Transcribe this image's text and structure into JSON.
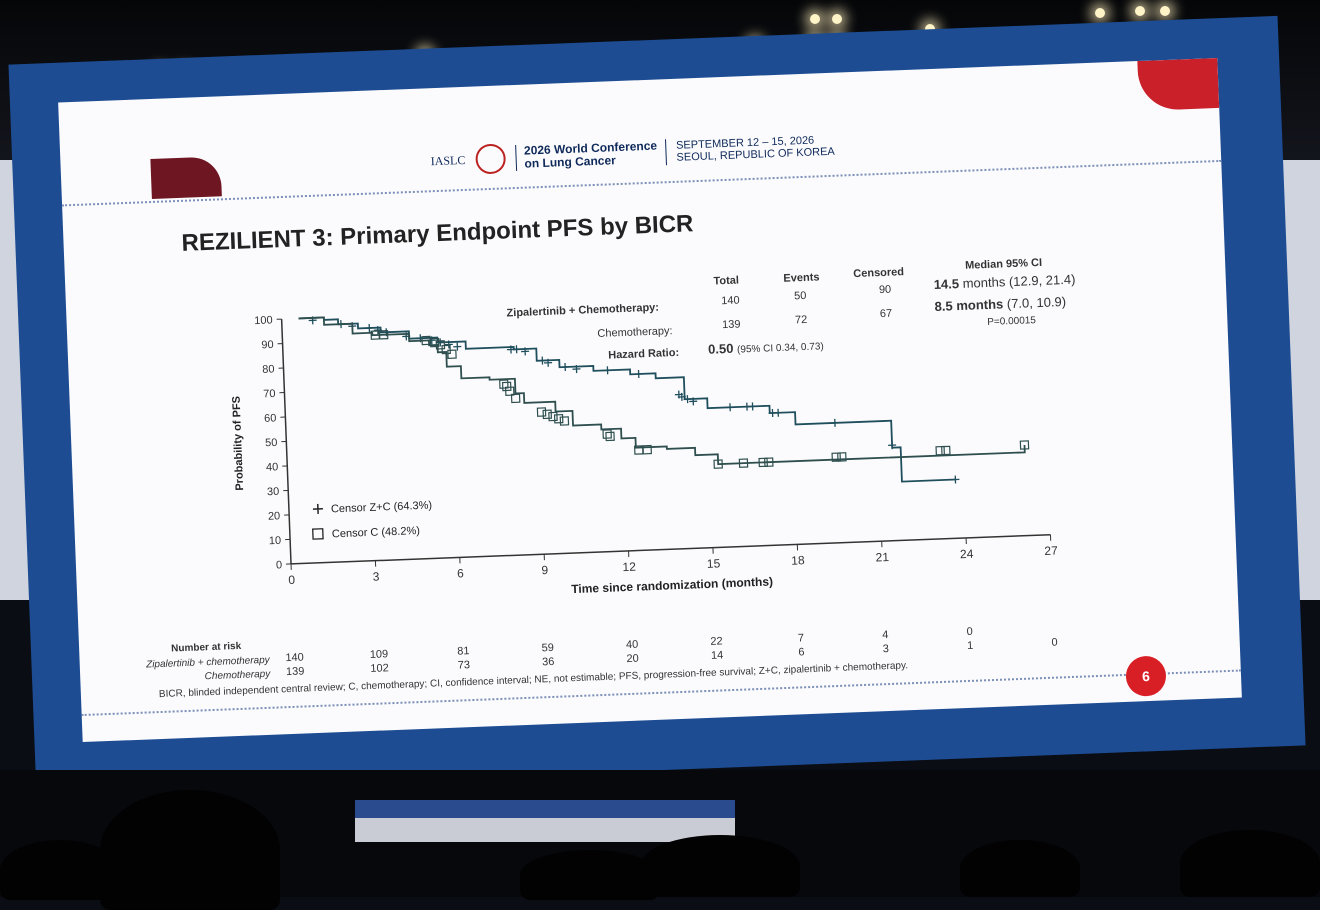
{
  "header": {
    "org": "IASLC",
    "conference_line1": "2026 World Conference",
    "conference_line2": "on Lung Cancer",
    "date_line1": "SEPTEMBER 12 – 15, 2026",
    "date_line2": "SEOUL, REPUBLIC OF KOREA"
  },
  "slide_title": "REZILIENT 3: Primary Endpoint PFS by BICR",
  "stats": {
    "col_total": "Total",
    "col_events": "Events",
    "col_censored": "Censored",
    "col_median": "Median 95% CI",
    "row1_label": "Zipalertinib + Chemotherapy:",
    "row1_total": "140",
    "row1_events": "50",
    "row1_censored": "90",
    "row1_median": "14.5",
    "row1_median_unit": "months",
    "row1_ci": "(12.9, 21.4)",
    "row2_label": "Chemotherapy:",
    "row2_total": "139",
    "row2_events": "72",
    "row2_censored": "67",
    "row2_median": "8.5 months",
    "row2_ci": "(7.0, 10.9)",
    "hr_label": "Hazard Ratio:",
    "hr_value": "0.50",
    "hr_ci": "(95% CI 0.34, 0.73)",
    "p_value": "P=0.00015"
  },
  "chart_data": {
    "type": "line",
    "xlabel": "Time since randomization (months)",
    "ylabel": "Probability of PFS",
    "xlim": [
      0,
      27
    ],
    "ylim": [
      0,
      100
    ],
    "x_ticks": [
      0,
      3,
      6,
      9,
      12,
      15,
      18,
      21,
      24,
      27
    ],
    "y_ticks": [
      0,
      10,
      20,
      30,
      40,
      50,
      60,
      70,
      80,
      90,
      100
    ],
    "legend": [
      {
        "marker": "+",
        "label": "Censor Z+C (64.3%)"
      },
      {
        "marker": "□",
        "label": "Censor C (48.2%)"
      }
    ],
    "series": [
      {
        "color": "#1f4e5c",
        "points": [
          [
            0.6,
            100
          ],
          [
            1.5,
            99
          ],
          [
            2,
            97
          ],
          [
            2.7,
            95
          ],
          [
            3.5,
            93
          ],
          [
            4.5,
            90
          ],
          [
            5.5,
            88
          ],
          [
            6.5,
            85
          ],
          [
            8.2,
            84
          ],
          [
            9,
            79
          ],
          [
            9.8,
            76
          ],
          [
            11,
            74
          ],
          [
            12.3,
            72
          ],
          [
            13.2,
            70
          ],
          [
            14.2,
            61
          ],
          [
            15,
            57
          ],
          [
            16.3,
            57
          ],
          [
            17.2,
            54
          ],
          [
            18.1,
            49
          ],
          [
            21.3,
            49
          ],
          [
            21.5,
            38
          ],
          [
            21.8,
            24
          ],
          [
            23.7,
            24
          ]
        ],
        "censor_x": [
          1.1,
          2.1,
          2.5,
          3.1,
          3.4,
          3.7,
          4.4,
          4.9,
          5.3,
          5.6,
          5.9,
          6.2,
          8.1,
          8.3,
          8.6,
          9.2,
          9.4,
          10.0,
          10.4,
          11.5,
          12.6,
          14.0,
          14.1,
          14.3,
          14.5,
          15.8,
          16.4,
          16.6,
          17.3,
          17.5,
          19.5,
          21.5,
          23.7
        ],
        "censor_y": [
          99,
          97,
          96,
          95,
          94,
          93,
          91,
          90,
          89,
          88,
          87,
          86,
          84,
          84,
          83,
          79,
          78,
          76,
          75,
          74,
          72,
          63,
          62,
          61,
          60,
          57,
          57,
          57,
          54,
          54,
          49,
          39,
          24
        ]
      },
      {
        "color": "#2f4f4f",
        "points": [
          [
            0.6,
            100
          ],
          [
            1.5,
            97
          ],
          [
            2.5,
            93
          ],
          [
            3.2,
            92
          ],
          [
            4.5,
            89
          ],
          [
            5.2,
            87
          ],
          [
            5.5,
            84
          ],
          [
            5.8,
            78
          ],
          [
            6.3,
            73
          ],
          [
            7.3,
            72
          ],
          [
            8.2,
            66
          ],
          [
            8.5,
            62
          ],
          [
            9.6,
            58
          ],
          [
            10.2,
            52
          ],
          [
            11.2,
            50
          ],
          [
            11.9,
            46
          ],
          [
            12.4,
            42
          ],
          [
            13.5,
            41
          ],
          [
            14.5,
            38
          ],
          [
            15.3,
            34
          ],
          [
            20.2,
            34
          ],
          [
            26.2,
            37
          ]
        ],
        "censor_x": [
          3.3,
          3.6,
          5.1,
          5.4,
          5.6,
          5.8,
          6.0,
          7.8,
          7.9,
          8.0,
          8.2,
          9.1,
          9.3,
          9.5,
          9.7,
          9.9,
          11.4,
          11.5,
          12.5,
          12.8,
          15.3,
          16.2,
          16.9,
          17.1,
          19.5,
          19.7,
          23.2,
          23.4,
          26.2
        ],
        "censor_y": [
          92,
          92,
          89,
          88,
          87,
          85,
          83,
          70,
          69,
          67,
          64,
          58,
          57,
          56,
          55,
          54,
          48,
          47,
          41,
          41,
          34,
          34,
          34,
          34,
          35,
          35,
          36,
          36,
          37
        ]
      }
    ]
  },
  "risk_table": {
    "title": "Number at risk",
    "rows": [
      {
        "label": "Zipalertinib + chemotherapy",
        "values": [
          "140",
          "109",
          "81",
          "59",
          "40",
          "22",
          "7",
          "4",
          "0"
        ]
      },
      {
        "label": "Chemotherapy",
        "values": [
          "139",
          "102",
          "73",
          "36",
          "20",
          "14",
          "6",
          "3",
          "1",
          "0"
        ]
      }
    ]
  },
  "footnote": "BICR, blinded independent central review; C, chemotherapy; CI, confidence interval; NE, not estimable; PFS, progression-free survival; Z+C, zipalertinib + chemotherapy.",
  "page_number": "6"
}
